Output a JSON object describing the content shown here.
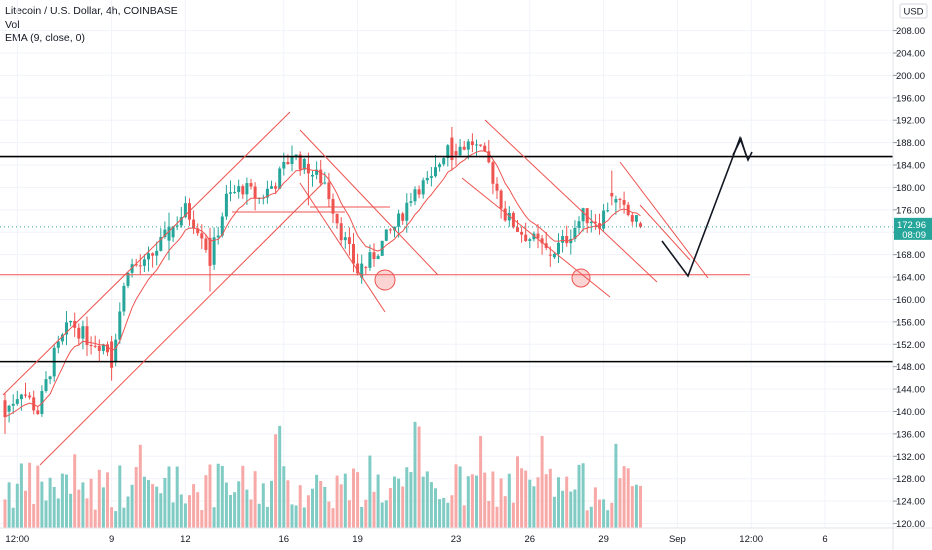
{
  "legend": {
    "title": "Litecoin / U.S. Dollar, 4h, COINBASE",
    "vol": "Vol",
    "ema": "EMA (9, close, 0)"
  },
  "price_badge": {
    "price": "172.96",
    "time": "08:09",
    "currency": "USD"
  },
  "colors": {
    "up": "#26a69a",
    "down": "#ef5350",
    "up_vol": "#80cbc4",
    "down_vol": "#f7a9a7",
    "ema": "#ef5350",
    "annotation": "#ef5350",
    "level": "#000000",
    "badge": "#26a69a"
  },
  "chart_data": {
    "type": "candlestick",
    "symbol": "Litecoin / U.S. Dollar",
    "interval": "4h",
    "exchange": "COINBASE",
    "indicators": [
      "Vol",
      "EMA (9, close, 0)"
    ],
    "y_axis": {
      "ticks": [
        120,
        124,
        128,
        132,
        136,
        140,
        144,
        148,
        152,
        156,
        160,
        164,
        168,
        172,
        176,
        180,
        184,
        188,
        192,
        196,
        200,
        204,
        208
      ],
      "tick_labels": [
        "120.00",
        "124.00",
        "128.00",
        "132.00",
        "136.00",
        "140.00",
        "144.00",
        "148.00",
        "152.00",
        "156.00",
        "160.00",
        "164.00",
        "168.00",
        "172.00",
        "176.00",
        "180.00",
        "184.00",
        "188.00",
        "192.00",
        "196.00",
        "200.00",
        "204.00",
        "208.00"
      ],
      "range": [
        119.2,
        213.1
      ],
      "currency_label": "USD"
    },
    "x_axis": {
      "labels": [
        "12:00",
        "9",
        "12",
        "16",
        "19",
        "23",
        "26",
        "29",
        "Sep",
        "12:00",
        "6"
      ],
      "label_index": [
        3,
        26,
        44,
        68,
        86,
        110,
        128,
        146,
        164,
        182,
        200
      ]
    },
    "last_price": 172.96,
    "horizontal_levels": [
      185.5,
      148.9
    ],
    "support_level": 164.4,
    "anchor_candles": [
      {
        "index": 0,
        "open": 142.0,
        "high": 143.4,
        "low": 136.0,
        "close": 139.0
      },
      {
        "index": 26,
        "open": 152.5,
        "high": 153.5,
        "low": 145.5,
        "close": 147.8
      },
      {
        "index": 40,
        "open": 170.5,
        "high": 175.5,
        "low": 167.0,
        "close": 173.0
      },
      {
        "index": 50,
        "open": 171.0,
        "high": 172.8,
        "low": 161.4,
        "close": 166.0
      },
      {
        "index": 74,
        "open": 184.2,
        "high": 186.2,
        "low": 176.8,
        "close": 182.5
      },
      {
        "index": 87,
        "open": 163.9,
        "high": 168.0,
        "low": 162.8,
        "close": 166.4
      },
      {
        "index": 109,
        "open": 188.9,
        "high": 190.8,
        "low": 183.0,
        "close": 184.9
      },
      {
        "index": 133,
        "open": 168.0,
        "high": 169.5,
        "low": 165.8,
        "close": 167.9
      },
      {
        "index": 148,
        "open": 179.0,
        "high": 183.0,
        "low": 176.8,
        "close": 178.4
      },
      {
        "index": 155,
        "open": 173.6,
        "high": 173.9,
        "low": 172.7,
        "close": 172.96
      }
    ],
    "volume_axis_note": "volume bars, unlabeled scale",
    "projection_path_prices": [
      [
        157,
        171.5
      ],
      [
        161,
        165.0
      ],
      [
        171,
        189.0
      ],
      [
        175,
        186.0
      ]
    ],
    "annotations": [
      "rising channel",
      "falling channel",
      "support highlight circles",
      "projected zig-zag path"
    ]
  }
}
